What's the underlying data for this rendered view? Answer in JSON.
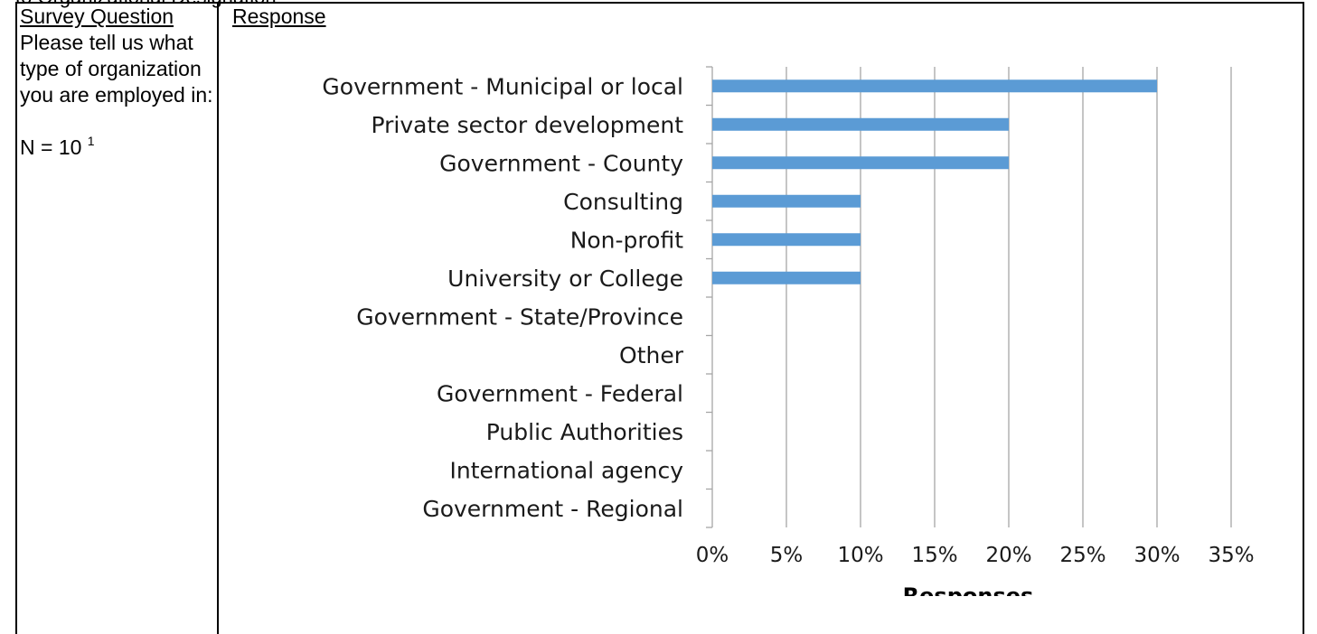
{
  "page": {
    "top_strip_text": "to Organizational Designation"
  },
  "left_column": {
    "heading": "Survey Question",
    "question": "Please tell us what type of organization you are employed in:",
    "n_label": "N = 10",
    "n_footnote": "1"
  },
  "right_column": {
    "heading": "Response"
  },
  "colors": {
    "bar": "#5b9bd5",
    "grid": "#a6a6a6",
    "axis_text": "#1a1a1a"
  },
  "chart_data": {
    "type": "bar",
    "orientation": "horizontal",
    "categories": [
      "Government - Municipal or local",
      "Private sector development",
      "Government - County",
      "Consulting",
      "Non-profit",
      "University or College",
      "Government - State/Province",
      "Other",
      "Government - Federal",
      "Public Authorities",
      "International agency",
      "Government - Regional"
    ],
    "values": [
      30,
      20,
      20,
      10,
      10,
      10,
      0,
      0,
      0,
      0,
      0,
      0
    ],
    "xlim": [
      0,
      35
    ],
    "xticks": [
      "0%",
      "5%",
      "10%",
      "15%",
      "20%",
      "25%",
      "30%",
      "35%"
    ],
    "xlabel": "Responses",
    "ylabel": "",
    "title": "",
    "grid": "vertical",
    "legend": "none"
  }
}
